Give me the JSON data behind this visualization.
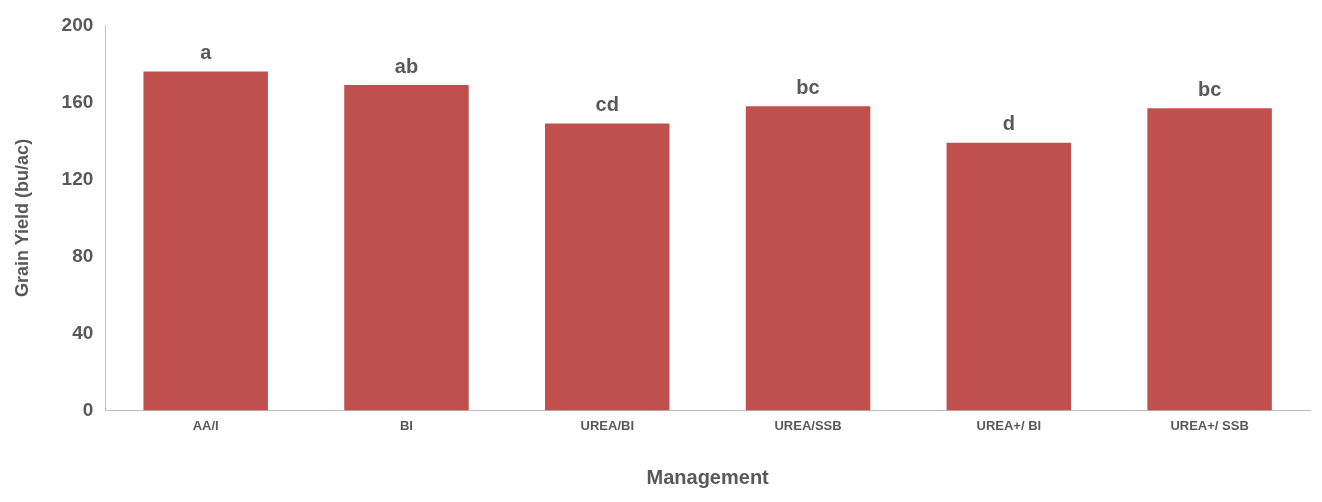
{
  "chart_data": {
    "type": "bar",
    "xlabel": "Management",
    "ylabel": "Grain Yield (bu/ac)",
    "categories": [
      "AA/I",
      "BI",
      "UREA/BI",
      "UREA/SSB",
      "UREA+/ BI",
      "UREA+/ SSB"
    ],
    "values": [
      176,
      169,
      149,
      158,
      139,
      157
    ],
    "value_labels": [
      "a",
      "ab",
      "cd",
      "bc",
      "d",
      "bc"
    ],
    "color": "#c0504d",
    "ylim": [
      0,
      200
    ],
    "yticks": [
      0,
      40,
      80,
      120,
      160,
      200
    ],
    "grid": false,
    "legend": false
  }
}
